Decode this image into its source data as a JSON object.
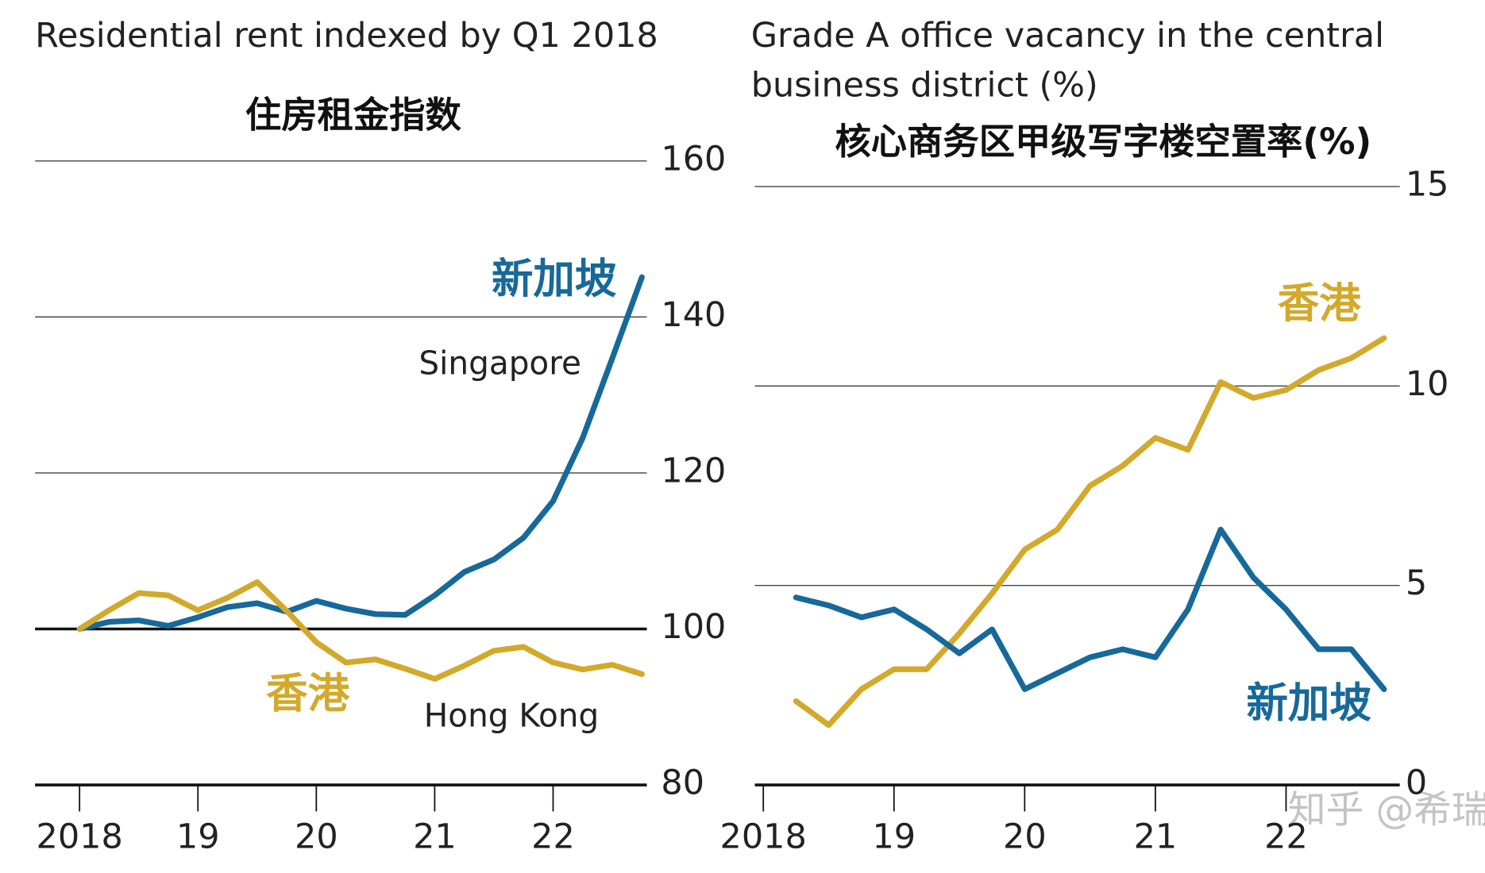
{
  "chart_data": [
    {
      "type": "line",
      "title": "Residential rent indexed by Q1 2018",
      "subtitle": "住房租金指数",
      "x": [
        2018,
        2018.25,
        2018.5,
        2018.75,
        2019,
        2019.25,
        2019.5,
        2019.75,
        2020,
        2020.25,
        2020.5,
        2020.75,
        2021,
        2021.25,
        2021.5,
        2021.75,
        2022,
        2022.25,
        2022.5,
        2022.75
      ],
      "xlim": [
        2017.624,
        2022.792
      ],
      "xticks": [
        {
          "value": 2018,
          "label": "2018"
        },
        {
          "value": 2019,
          "label": "19"
        },
        {
          "value": 2020,
          "label": "20"
        },
        {
          "value": 2021,
          "label": "21"
        },
        {
          "value": 2022,
          "label": "22"
        }
      ],
      "ylim": [
        80,
        160
      ],
      "yticks": [
        80,
        100,
        120,
        140,
        160
      ],
      "index_base": 100,
      "grid": true,
      "series": [
        {
          "name": "新加坡",
          "label": "Singapore",
          "color": "#16699a",
          "values": [
            100,
            100.9,
            101.1,
            100.4,
            101.5,
            102.8,
            103.3,
            102.2,
            103.6,
            102.6,
            101.9,
            101.8,
            104.3,
            107.3,
            108.9,
            111.7,
            116.4,
            124.5,
            134.7,
            145.1
          ]
        },
        {
          "name": "香港",
          "label": "Hong Kong",
          "color": "#d3a92b",
          "values": [
            100,
            102.4,
            104.6,
            104.3,
            102.4,
            104.0,
            106.0,
            102.3,
            98.3,
            95.7,
            96.1,
            94.9,
            93.6,
            95.3,
            97.2,
            97.7,
            95.7,
            94.8,
            95.4,
            94.2
          ]
        }
      ]
    },
    {
      "type": "line",
      "title": [
        "Grade A office vacancy in the central",
        "business district (%)"
      ],
      "subtitle": "核心商务区甲级写字楼空置率(%)",
      "x": [
        2018.25,
        2018.5,
        2018.75,
        2019,
        2019.25,
        2019.5,
        2019.75,
        2020,
        2020.25,
        2020.5,
        2020.75,
        2021,
        2021.25,
        2021.5,
        2021.75,
        2022,
        2022.25,
        2022.5,
        2022.75
      ],
      "xlim": [
        2017.935,
        2022.87
      ],
      "xticks": [
        {
          "value": 2018,
          "label": "2018"
        },
        {
          "value": 2019,
          "label": "19"
        },
        {
          "value": 2020,
          "label": "20"
        },
        {
          "value": 2021,
          "label": "21"
        },
        {
          "value": 2022,
          "label": "22"
        }
      ],
      "ylim": [
        0,
        15
      ],
      "yticks": [
        0,
        5,
        10,
        15
      ],
      "grid": true,
      "series": [
        {
          "name": "香港",
          "color": "#d3a92b",
          "values": [
            2.1,
            1.5,
            2.4,
            2.9,
            2.9,
            3.8,
            4.8,
            5.9,
            6.4,
            7.5,
            8.0,
            8.7,
            8.4,
            10.1,
            9.7,
            9.9,
            10.4,
            10.7,
            11.2
          ]
        },
        {
          "name": "新加坡",
          "color": "#16699a",
          "values": [
            4.7,
            4.5,
            4.2,
            4.4,
            3.9,
            3.3,
            3.9,
            2.4,
            2.8,
            3.2,
            3.4,
            3.2,
            4.4,
            6.4,
            5.2,
            4.4,
            3.4,
            3.4,
            2.4
          ]
        }
      ]
    }
  ],
  "watermark": "知乎 @希瑞归来"
}
